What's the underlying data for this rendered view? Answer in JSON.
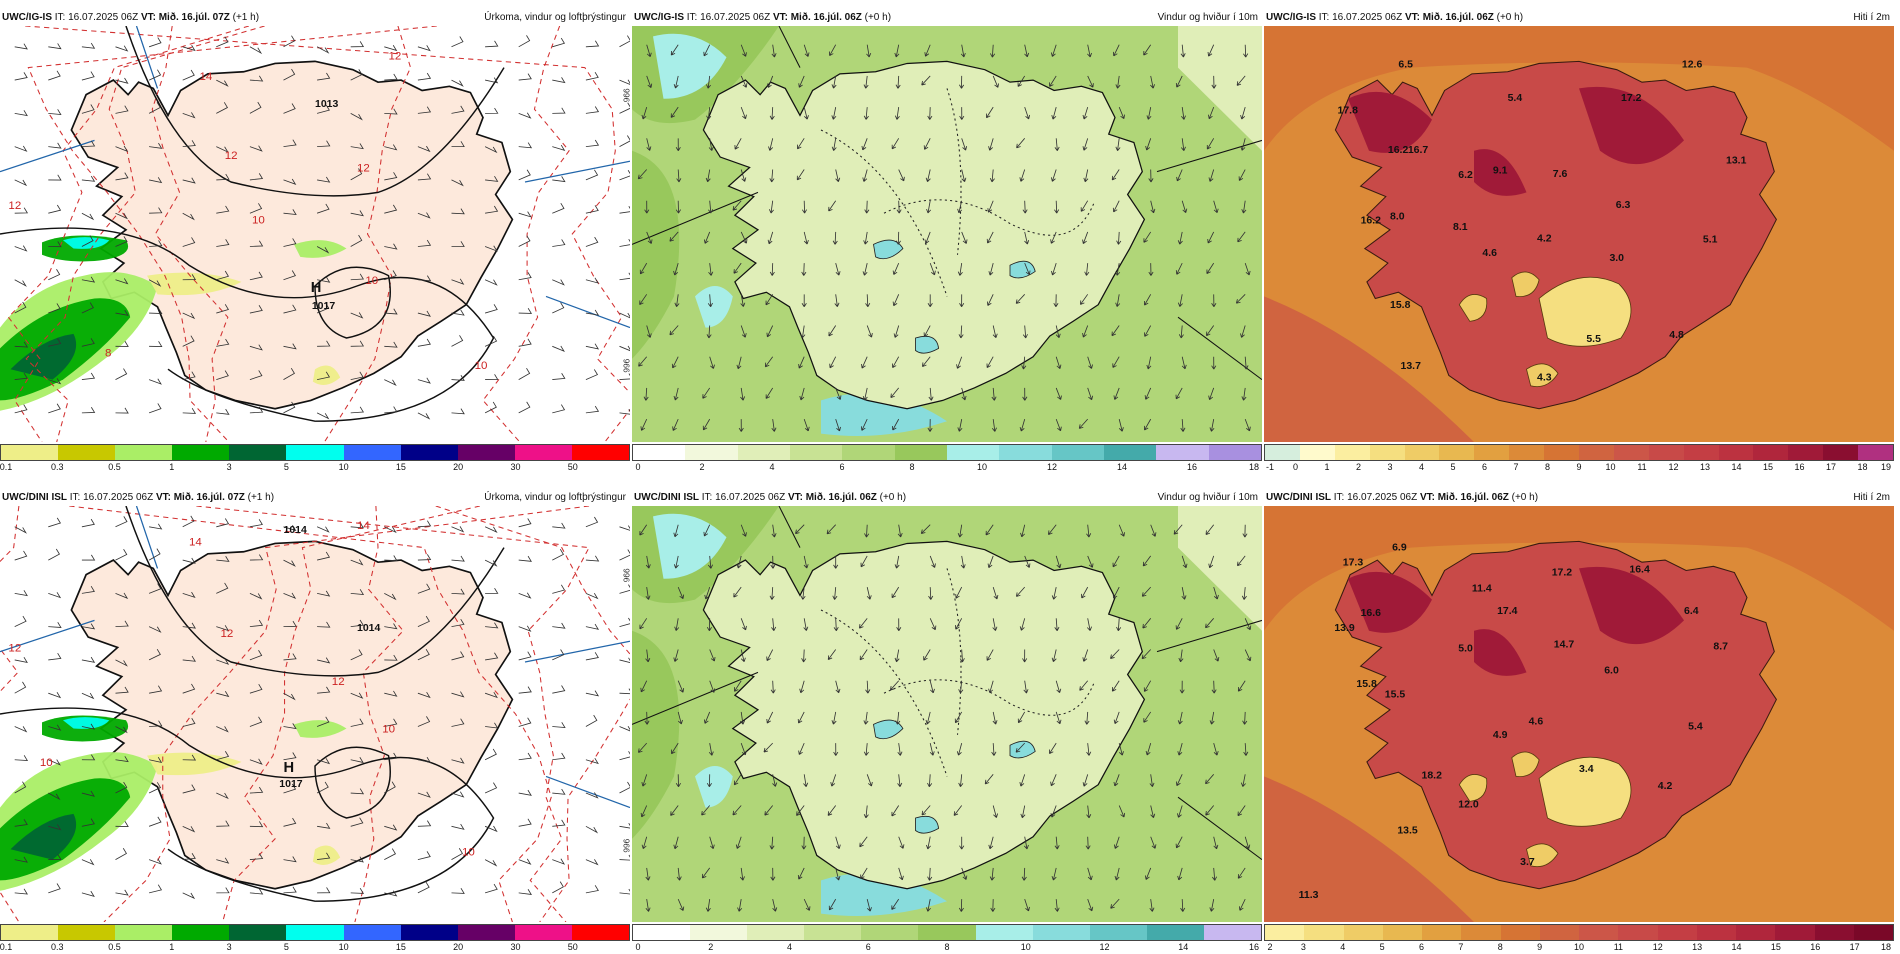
{
  "panels": [
    {
      "model": "UWC/IG-IS",
      "it_label": "IT:",
      "it": "16.07.2025 06Z",
      "vt_label": "VT:",
      "vt": "Mið. 16.júl. 07Z",
      "lead": "(+1 h)",
      "title": "Úrkoma, vindur og loftþrýstingur",
      "kind": "precip",
      "colors": [
        "#eeee88",
        "#c8c800",
        "#aaee66",
        "#00aa00",
        "#006633",
        "#00ffee",
        "#3366ff",
        "#000088",
        "#660066",
        "#ee1188",
        "#ff0000"
      ],
      "ticks": [
        "0.1",
        "0.3",
        "0.5",
        "1",
        "3",
        "5",
        "10",
        "15",
        "20",
        "30",
        "50"
      ],
      "labels": [
        "1013",
        "H",
        "1017",
        "14",
        "12",
        "12",
        "12",
        "10",
        "10",
        "8",
        "10",
        "12"
      ],
      "side": [
        "996",
        "966"
      ]
    },
    {
      "model": "UWC/IG-IS",
      "it_label": "IT:",
      "it": "16.07.2025 06Z",
      "vt_label": "VT:",
      "vt": "Mið. 16.júl. 06Z",
      "lead": "(+0 h)",
      "title": "Vindur og hviður í 10m",
      "kind": "wind",
      "colors": [
        "#ffffff",
        "#f2f8dc",
        "#e0eeb8",
        "#c8e294",
        "#b0d678",
        "#98c85c",
        "#a8eee8",
        "#88dcdc",
        "#66c6c6",
        "#44aaaa",
        "#c8b8f0",
        "#a890e0"
      ],
      "ticks": [
        "0",
        "2",
        "4",
        "6",
        "8",
        "10",
        "12",
        "14",
        "16",
        "18"
      ]
    },
    {
      "model": "UWC/IG-IS",
      "it_label": "IT:",
      "it": "16.07.2025 06Z",
      "vt_label": "VT:",
      "vt": "Mið. 16.júl. 06Z",
      "lead": "(+0 h)",
      "title": "Hiti í 2m",
      "kind": "temp",
      "colors": [
        "#d6eedd",
        "#fffacc",
        "#fbeea0",
        "#f5df80",
        "#efcc66",
        "#e8b850",
        "#e2a040",
        "#dc8a38",
        "#d67434",
        "#d06440",
        "#cc5648",
        "#c84a48",
        "#c43e44",
        "#bc3240",
        "#b0263c",
        "#a01a38",
        "#8a0e30",
        "#b03080"
      ],
      "ticks": [
        "-1",
        "0",
        "1",
        "2",
        "3",
        "4",
        "5",
        "6",
        "7",
        "8",
        "9",
        "10",
        "11",
        "12",
        "13",
        "14",
        "15",
        "16",
        "17",
        "18",
        "19"
      ],
      "values": [
        "6.5",
        "12.6",
        "17.8",
        "5.4",
        "16.2",
        "17.2",
        "16.7",
        "8.1",
        "9.1",
        "7.6",
        "6.2",
        "13.1",
        "16.2",
        "8.0",
        "6.3",
        "4.6",
        "4.2",
        "5.1",
        "3.0",
        "15.8",
        "5.5",
        "4.8",
        "13.7",
        "4.3"
      ]
    },
    {
      "model": "UWC/DINI ISL",
      "it_label": "IT:",
      "it": "16.07.2025 06Z",
      "vt_label": "VT:",
      "vt": "Mið. 16.júl. 07Z",
      "lead": "(+1 h)",
      "title": "Úrkoma, vindur og loftþrýstingur",
      "kind": "precip",
      "colors": [
        "#eeee88",
        "#c8c800",
        "#aaee66",
        "#00aa00",
        "#006633",
        "#00ffee",
        "#3366ff",
        "#000088",
        "#660066",
        "#ee1188",
        "#ff0000"
      ],
      "ticks": [
        "0.1",
        "0.3",
        "0.5",
        "1",
        "3",
        "5",
        "10",
        "15",
        "20",
        "30",
        "50"
      ],
      "labels": [
        "1014",
        "H",
        "1017",
        "14",
        "14",
        "12",
        "12",
        "12",
        "10",
        "10",
        "10",
        "1014"
      ],
      "side": [
        "996",
        "966"
      ]
    },
    {
      "model": "UWC/DINI ISL",
      "it_label": "IT:",
      "it": "16.07.2025 06Z",
      "vt_label": "VT:",
      "vt": "Mið. 16.júl. 06Z",
      "lead": "(+0 h)",
      "title": "Vindur og hviður í 10m",
      "kind": "wind",
      "colors": [
        "#ffffff",
        "#f2f8dc",
        "#e0eeb8",
        "#c8e294",
        "#b0d678",
        "#98c85c",
        "#a8eee8",
        "#88dcdc",
        "#66c6c6",
        "#44aaaa",
        "#c8b8f0"
      ],
      "ticks": [
        "0",
        "2",
        "4",
        "6",
        "8",
        "10",
        "12",
        "14",
        "16"
      ]
    },
    {
      "model": "UWC/DINI ISL",
      "it_label": "IT:",
      "it": "16.07.2025 06Z",
      "vt_label": "VT:",
      "vt": "Mið. 16.júl. 06Z",
      "lead": "(+0 h)",
      "title": "Hiti í 2m",
      "kind": "temp",
      "colors": [
        "#fbeea0",
        "#f5df80",
        "#efcc66",
        "#e8b850",
        "#e2a040",
        "#dc8a38",
        "#d67434",
        "#d06440",
        "#cc5648",
        "#c84a48",
        "#c43e44",
        "#bc3240",
        "#b0263c",
        "#a01a38",
        "#8a0e30",
        "#7a0828"
      ],
      "ticks": [
        "2",
        "3",
        "4",
        "5",
        "6",
        "7",
        "8",
        "9",
        "10",
        "11",
        "12",
        "13",
        "14",
        "15",
        "16",
        "17",
        "18"
      ],
      "values": [
        "17.3",
        "6.9",
        "11.4",
        "17.2",
        "16.4",
        "16.6",
        "17.4",
        "6.4",
        "13.9",
        "14.7",
        "8.7",
        "5.0",
        "6.0",
        "15.8",
        "15.5",
        "4.9",
        "4.6",
        "5.4",
        "3.4",
        "18.2",
        "4.2",
        "12.0",
        "13.5",
        "3.7",
        "11.3"
      ]
    }
  ]
}
